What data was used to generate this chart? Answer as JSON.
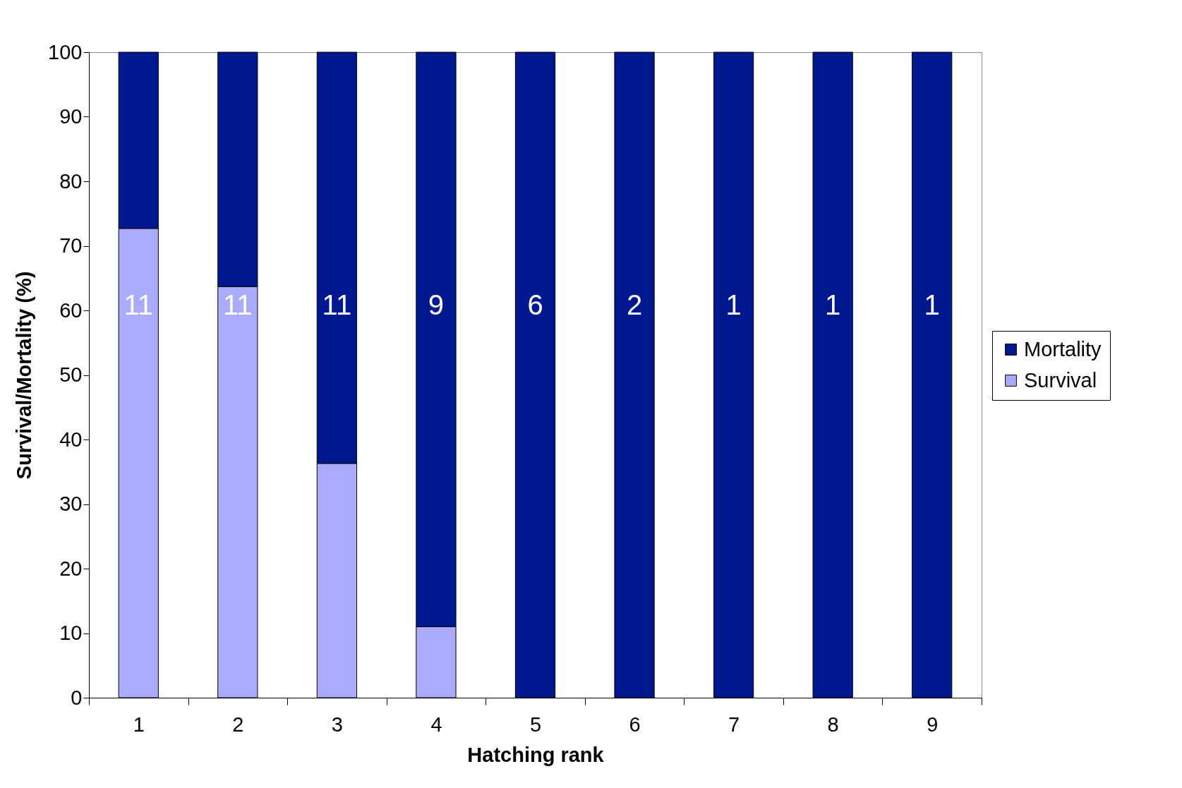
{
  "chart_data": {
    "type": "bar",
    "xlabel": "Hatching rank",
    "ylabel": "Survival/Mortality (%)",
    "categories": [
      "1",
      "2",
      "3",
      "4",
      "5",
      "6",
      "7",
      "8",
      "9"
    ],
    "series": [
      {
        "name": "Survival",
        "color": "#aaaaff",
        "values": [
          72.7,
          63.7,
          36.3,
          11,
          0,
          0,
          0,
          0,
          0
        ]
      },
      {
        "name": "Mortality",
        "color": "#00188f",
        "values": [
          27.3,
          36.3,
          63.7,
          89,
          100,
          100,
          100,
          100,
          100
        ]
      }
    ],
    "stacked": true,
    "ylim": [
      0,
      100
    ],
    "yticks": [
      0,
      10,
      20,
      30,
      40,
      50,
      60,
      70,
      80,
      90,
      100
    ],
    "grid": false,
    "legend": "right",
    "annotations": [
      "11",
      "11",
      "11",
      "9",
      "6",
      "2",
      "1",
      "1",
      "1"
    ]
  }
}
